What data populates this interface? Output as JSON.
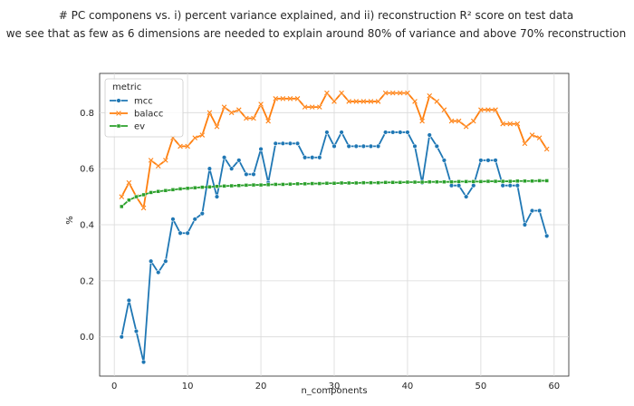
{
  "chart_data": {
    "type": "line",
    "title_line1": "# PC componens vs. i) percent variance explained, and ii) reconstruction R² score on test data",
    "title_line2": "we see that as few as 6 dimensions are needed to explain around 80% of variance and above 70% reconstruction",
    "xlabel": "n_components",
    "ylabel": "%",
    "xlim": [
      -2,
      62
    ],
    "ylim": [
      -0.14,
      0.94
    ],
    "xticks": [
      0,
      10,
      20,
      30,
      40,
      50,
      60
    ],
    "yticks": [
      0.0,
      0.2,
      0.4,
      0.6,
      0.8
    ],
    "grid": true,
    "legend_title": "metric",
    "legend_position": "top-left",
    "x": [
      1,
      2,
      3,
      4,
      5,
      6,
      7,
      8,
      9,
      10,
      11,
      12,
      13,
      14,
      15,
      16,
      17,
      18,
      19,
      20,
      21,
      22,
      23,
      24,
      25,
      26,
      27,
      28,
      29,
      30,
      31,
      32,
      33,
      34,
      35,
      36,
      37,
      38,
      39,
      40,
      41,
      42,
      43,
      44,
      45,
      46,
      47,
      48,
      49,
      50,
      51,
      52,
      53,
      54,
      55,
      56,
      57,
      58,
      59
    ],
    "series": [
      {
        "name": "mcc",
        "color": "#1f77b4",
        "marker": "circle",
        "values": [
          0.0,
          0.13,
          0.02,
          -0.09,
          0.27,
          0.23,
          0.27,
          0.42,
          0.37,
          0.37,
          0.42,
          0.44,
          0.6,
          0.5,
          0.64,
          0.6,
          0.63,
          0.58,
          0.58,
          0.67,
          0.55,
          0.69,
          0.69,
          0.69,
          0.69,
          0.64,
          0.64,
          0.64,
          0.73,
          0.68,
          0.73,
          0.68,
          0.68,
          0.68,
          0.68,
          0.68,
          0.73,
          0.73,
          0.73,
          0.73,
          0.68,
          0.55,
          0.72,
          0.68,
          0.63,
          0.54,
          0.54,
          0.5,
          0.54,
          0.63,
          0.63,
          0.63,
          0.54,
          0.54,
          0.54,
          0.4,
          0.45,
          0.45,
          0.36
        ]
      },
      {
        "name": "balacc",
        "color": "#ff7f0e",
        "marker": "x",
        "values": [
          0.5,
          0.55,
          0.5,
          0.46,
          0.63,
          0.61,
          0.63,
          0.71,
          0.68,
          0.68,
          0.71,
          0.72,
          0.8,
          0.75,
          0.82,
          0.8,
          0.81,
          0.78,
          0.78,
          0.83,
          0.77,
          0.85,
          0.85,
          0.85,
          0.85,
          0.82,
          0.82,
          0.82,
          0.87,
          0.84,
          0.87,
          0.84,
          0.84,
          0.84,
          0.84,
          0.84,
          0.87,
          0.87,
          0.87,
          0.87,
          0.84,
          0.77,
          0.86,
          0.84,
          0.81,
          0.77,
          0.77,
          0.75,
          0.77,
          0.81,
          0.81,
          0.81,
          0.76,
          0.76,
          0.76,
          0.69,
          0.72,
          0.71,
          0.67
        ]
      },
      {
        "name": "ev",
        "color": "#2ca02c",
        "marker": "square",
        "values": [
          0.465,
          0.488,
          0.5,
          0.507,
          0.515,
          0.519,
          0.522,
          0.525,
          0.528,
          0.53,
          0.532,
          0.534,
          0.535,
          0.537,
          0.538,
          0.539,
          0.54,
          0.541,
          0.542,
          0.542,
          0.543,
          0.544,
          0.544,
          0.545,
          0.546,
          0.546,
          0.547,
          0.547,
          0.548,
          0.548,
          0.549,
          0.549,
          0.549,
          0.55,
          0.55,
          0.55,
          0.551,
          0.551,
          0.551,
          0.552,
          0.552,
          0.552,
          0.553,
          0.553,
          0.553,
          0.553,
          0.554,
          0.554,
          0.554,
          0.554,
          0.555,
          0.555,
          0.555,
          0.555,
          0.556,
          0.556,
          0.556,
          0.557,
          0.557
        ]
      }
    ]
  }
}
